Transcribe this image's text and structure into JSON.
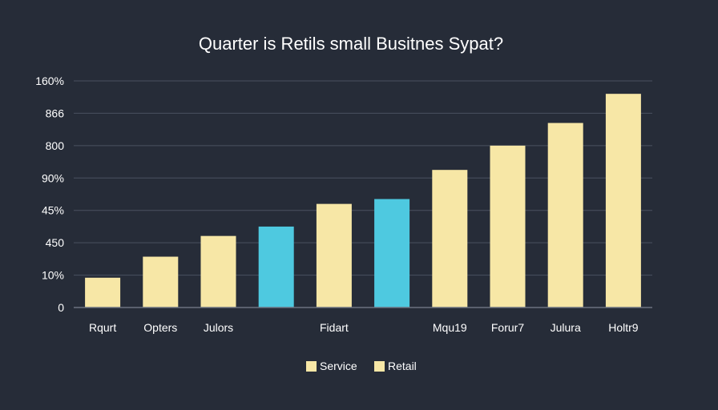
{
  "chart_data": {
    "type": "bar",
    "title": "Quarter is Retils small Busitnes Sypat?",
    "xlabel": "",
    "ylabel": "",
    "y_tick_labels": [
      "0",
      "10%",
      "450",
      "45%",
      "90%",
      "800",
      "866",
      "160%"
    ],
    "ylim": [
      0,
      7
    ],
    "grid": true,
    "categories": [
      "Rqurt",
      "Opters",
      "Julors",
      "Fidart",
      "Mqu19",
      "Forur7",
      "Julura",
      "Holtr9"
    ],
    "bars": [
      {
        "value": 0.92,
        "color": "#f7e7a6"
      },
      {
        "value": 1.57,
        "color": "#f7e7a6"
      },
      {
        "value": 2.21,
        "color": "#f7e7a6"
      },
      {
        "value": 2.5,
        "color": "#4ec9e0"
      },
      {
        "value": 3.2,
        "color": "#f7e7a6"
      },
      {
        "value": 3.35,
        "color": "#4ec9e0"
      },
      {
        "value": 4.25,
        "color": "#f7e7a6"
      },
      {
        "value": 5.0,
        "color": "#f7e7a6"
      },
      {
        "value": 5.7,
        "color": "#f7e7a6"
      },
      {
        "value": 6.6,
        "color": "#f7e7a6"
      }
    ],
    "category_positions": [
      0,
      1,
      2,
      4,
      6,
      7,
      8,
      9
    ],
    "legend": {
      "placement": "bottom-center",
      "items": [
        {
          "label": "Service",
          "color": "#f7e7a6"
        },
        {
          "label": "Retail",
          "color": "#f7e7a6"
        }
      ]
    },
    "colors": {
      "background": "#262c38",
      "text": "#ffffff",
      "grid": "#4a5160",
      "axis": "#6b7280"
    }
  }
}
